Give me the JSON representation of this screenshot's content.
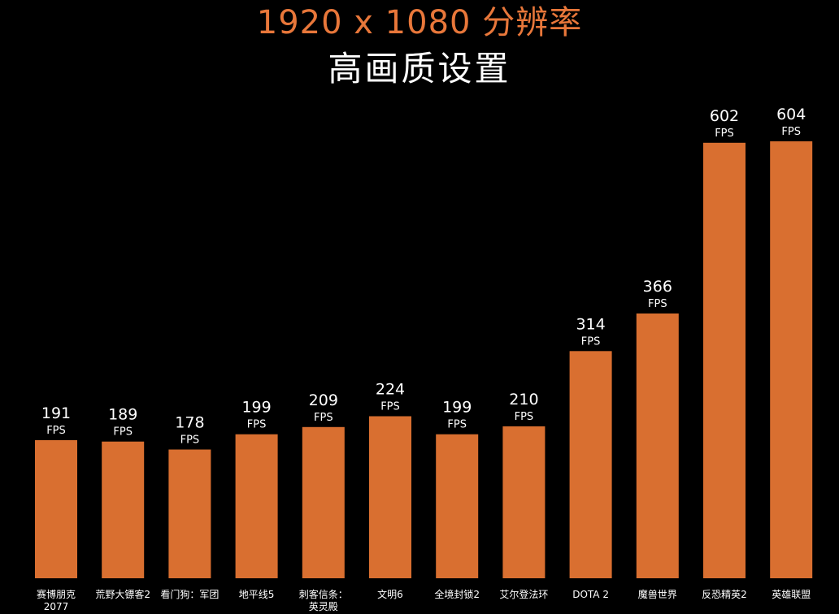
{
  "title": "1920 x 1080 分辨率",
  "subtitle": "高画质设置",
  "colors": {
    "bar": "#d96f30",
    "title": "#e8773a",
    "background": "#000000",
    "text": "#ffffff"
  },
  "chart_data": {
    "type": "bar",
    "title": "1920 x 1080 分辨率",
    "subtitle": "高画质设置",
    "unit": "FPS",
    "categories": [
      "赛博朋克2077",
      "荒野大镖客2",
      "看门狗：军团",
      "地平线5",
      "刺客信条：英灵殿",
      "文明6",
      "全境封锁2",
      "艾尔登法环",
      "DOTA 2",
      "魔兽世界",
      "反恐精英2",
      "英雄联盟"
    ],
    "category_lines": [
      [
        "赛博朋克",
        "2077"
      ],
      [
        "荒野大镖客2"
      ],
      [
        "看门狗：军团"
      ],
      [
        "地平线5"
      ],
      [
        "刺客信条：",
        "英灵殿"
      ],
      [
        "文明6"
      ],
      [
        "全境封锁2"
      ],
      [
        "艾尔登法环"
      ],
      [
        "DOTA 2"
      ],
      [
        "魔兽世界"
      ],
      [
        "反恐精英2"
      ],
      [
        "英雄联盟"
      ]
    ],
    "series": [
      {
        "values": [
          191,
          189,
          178,
          199,
          209,
          224,
          199,
          210,
          314,
          366,
          602,
          604
        ]
      }
    ],
    "ylim": [
      0,
      604
    ],
    "grid": false,
    "legend": "none"
  }
}
